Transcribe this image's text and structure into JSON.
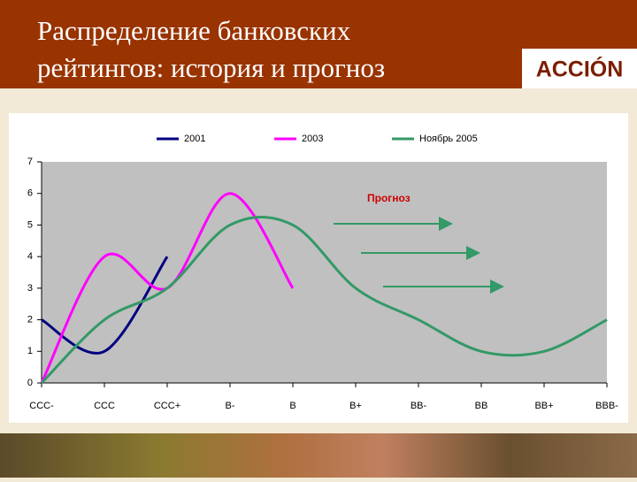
{
  "slide": {
    "title_lines": [
      "Распределение банковских",
      "рейтингов: история и прогноз"
    ],
    "logo": "ACCIÓN"
  },
  "chart_data": {
    "type": "line",
    "categories": [
      "CCC-",
      "CCC",
      "CCC+",
      "B-",
      "B",
      "B+",
      "BB-",
      "BB",
      "BB+",
      "BBB-"
    ],
    "series": [
      {
        "name": "2001",
        "color": "#000080",
        "values": [
          2,
          1,
          4,
          null,
          null,
          null,
          null,
          null,
          null,
          null
        ]
      },
      {
        "name": "2003",
        "color": "#ff00ff",
        "values": [
          0,
          4,
          3,
          6,
          3,
          null,
          null,
          null,
          null,
          null
        ]
      },
      {
        "name": "Ноябрь 2005",
        "color": "#339966",
        "values": [
          0,
          2,
          3,
          5,
          5,
          3,
          2,
          1,
          1,
          2
        ]
      }
    ],
    "ylim": [
      0,
      7
    ],
    "yticks": [
      0,
      1,
      2,
      3,
      4,
      5,
      6,
      7
    ],
    "smooth": true,
    "annotation": "Прогноз"
  }
}
